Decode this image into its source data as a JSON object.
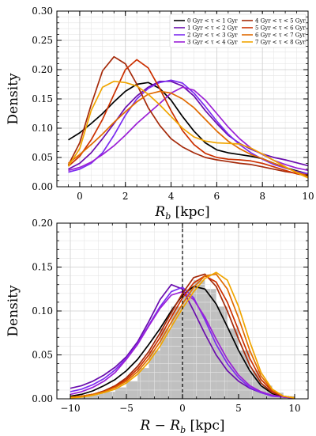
{
  "chart_data": [
    {
      "type": "line",
      "title": "",
      "xlabel": "R_b [kpc]",
      "xlabel_main": "R",
      "xlabel_sub": "b",
      "xlabel_unit": " [kpc]",
      "ylabel": "Density",
      "xlim": [
        -1,
        10
      ],
      "ylim": [
        0,
        0.3
      ],
      "xticks": [
        0,
        2,
        4,
        6,
        8,
        10
      ],
      "xtick_labels": [
        "0",
        "2",
        "4",
        "6",
        "8",
        "10"
      ],
      "yticks": [
        0,
        0.05,
        0.1,
        0.15,
        0.2,
        0.25,
        0.3
      ],
      "ytick_labels": [
        "0.00",
        "0.05",
        "0.10",
        "0.15",
        "0.20",
        "0.25",
        "0.30"
      ],
      "grid": true,
      "legend_position": "top-right",
      "x": [
        -0.5,
        0,
        0.5,
        1,
        1.5,
        2,
        2.5,
        3,
        3.5,
        4,
        4.5,
        5,
        5.5,
        6,
        6.5,
        7,
        7.5,
        8,
        8.5,
        9,
        9.5,
        10
      ],
      "series": [
        {
          "name": "0 Gyr < τ < 1 Gyr",
          "color": "#000000",
          "values": [
            0.08,
            0.092,
            0.108,
            0.125,
            0.145,
            0.163,
            0.175,
            0.178,
            0.168,
            0.148,
            0.12,
            0.095,
            0.075,
            0.063,
            0.058,
            0.055,
            0.052,
            0.048,
            0.04,
            0.033,
            0.027,
            0.022
          ]
        },
        {
          "name": "1 Gyr < τ < 2 Gyr",
          "color": "#6a0dad",
          "values": [
            0.03,
            0.04,
            0.058,
            0.082,
            0.108,
            0.135,
            0.155,
            0.17,
            0.18,
            0.18,
            0.172,
            0.155,
            0.13,
            0.108,
            0.088,
            0.074,
            0.064,
            0.056,
            0.05,
            0.046,
            0.041,
            0.036
          ]
        },
        {
          "name": "2 Gyr < τ < 3 Gyr",
          "color": "#7b2cf0",
          "values": [
            0.025,
            0.03,
            0.04,
            0.058,
            0.088,
            0.122,
            0.15,
            0.168,
            0.178,
            0.182,
            0.177,
            0.16,
            0.137,
            0.112,
            0.09,
            0.072,
            0.058,
            0.047,
            0.038,
            0.032,
            0.026,
            0.022
          ]
        },
        {
          "name": "3 Gyr < τ < 4 Gyr",
          "color": "#9b1fd6",
          "values": [
            0.028,
            0.033,
            0.042,
            0.055,
            0.07,
            0.088,
            0.108,
            0.125,
            0.142,
            0.16,
            0.17,
            0.165,
            0.148,
            0.125,
            0.102,
            0.082,
            0.066,
            0.055,
            0.045,
            0.038,
            0.032,
            0.028
          ]
        },
        {
          "name": "4 Gyr < τ < 5 Gyr",
          "color": "#a52a0a",
          "values": [
            0.037,
            0.075,
            0.14,
            0.198,
            0.222,
            0.21,
            0.175,
            0.135,
            0.105,
            0.082,
            0.068,
            0.058,
            0.05,
            0.046,
            0.043,
            0.04,
            0.038,
            0.034,
            0.03,
            0.026,
            0.023,
            0.02
          ]
        },
        {
          "name": "5 Gyr < τ < 6 Gyr",
          "color": "#cc3000",
          "values": [
            0.035,
            0.052,
            0.08,
            0.115,
            0.158,
            0.2,
            0.217,
            0.203,
            0.168,
            0.13,
            0.096,
            0.072,
            0.057,
            0.05,
            0.047,
            0.046,
            0.044,
            0.04,
            0.034,
            0.028,
            0.022,
            0.018
          ]
        },
        {
          "name": "6 Gyr < τ < 7 Gyr",
          "color": "#e06a00",
          "values": [
            0.04,
            0.055,
            0.072,
            0.09,
            0.11,
            0.128,
            0.145,
            0.158,
            0.163,
            0.16,
            0.15,
            0.135,
            0.115,
            0.095,
            0.078,
            0.065,
            0.055,
            0.048,
            0.04,
            0.033,
            0.025,
            0.018
          ]
        },
        {
          "name": "7 Gyr < τ < 8 Gyr",
          "color": "#f0a500",
          "values": [
            0.035,
            0.065,
            0.13,
            0.17,
            0.18,
            0.178,
            0.172,
            0.158,
            0.14,
            0.12,
            0.1,
            0.085,
            0.078,
            0.075,
            0.074,
            0.073,
            0.066,
            0.056,
            0.045,
            0.034,
            0.024,
            0.015
          ]
        }
      ]
    },
    {
      "type": "line",
      "title": "",
      "xlabel": "R - R_b [kpc]",
      "xlabel_main": "R − R",
      "xlabel_sub": "b",
      "xlabel_unit": " [kpc]",
      "ylabel": "Density",
      "xlim": [
        -11.2,
        11.2
      ],
      "ylim": [
        0,
        0.2
      ],
      "xticks": [
        -10,
        -5,
        0,
        5,
        10
      ],
      "xtick_labels": [
        "−10",
        "−5",
        "0",
        "5",
        "10"
      ],
      "yticks": [
        0,
        0.05,
        0.1,
        0.15,
        0.2
      ],
      "ytick_labels": [
        "0.00",
        "0.05",
        "0.10",
        "0.15",
        "0.20"
      ],
      "grid": true,
      "vertical_line_x": 0,
      "histogram": {
        "color": "#c0c0c0",
        "bin_width": 1,
        "bin_starts": [
          -10,
          -9,
          -8,
          -7,
          -6,
          -5,
          -4,
          -3,
          -2,
          -1,
          0,
          1,
          2,
          3,
          4,
          5,
          6,
          7,
          8,
          9
        ],
        "values": [
          0.003,
          0.004,
          0.006,
          0.008,
          0.013,
          0.02,
          0.035,
          0.055,
          0.08,
          0.105,
          0.125,
          0.135,
          0.125,
          0.105,
          0.08,
          0.055,
          0.032,
          0.015,
          0.007,
          0.003
        ]
      },
      "x": [
        -10,
        -9,
        -8,
        -7,
        -6,
        -5,
        -4,
        -3,
        -2,
        -1,
        0,
        1,
        2,
        3,
        4,
        5,
        6,
        7,
        8,
        9,
        10
      ],
      "series": [
        {
          "name": "0 Gyr < τ < 1 Gyr",
          "color": "#000000",
          "values": [
            0.003,
            0.005,
            0.009,
            0.015,
            0.022,
            0.032,
            0.045,
            0.062,
            0.08,
            0.1,
            0.118,
            0.128,
            0.125,
            0.108,
            0.082,
            0.055,
            0.032,
            0.015,
            0.006,
            0.002,
            0.001
          ]
        },
        {
          "name": "1 Gyr < τ < 2 Gyr",
          "color": "#6a0dad",
          "values": [
            0.012,
            0.015,
            0.02,
            0.027,
            0.036,
            0.048,
            0.065,
            0.088,
            0.113,
            0.13,
            0.125,
            0.1,
            0.074,
            0.05,
            0.032,
            0.02,
            0.012,
            0.007,
            0.004,
            0.002,
            0.001
          ]
        },
        {
          "name": "2 Gyr < τ < 3 Gyr",
          "color": "#7b2cf0",
          "values": [
            0.008,
            0.011,
            0.016,
            0.023,
            0.033,
            0.046,
            0.063,
            0.084,
            0.105,
            0.122,
            0.127,
            0.115,
            0.09,
            0.062,
            0.04,
            0.024,
            0.013,
            0.007,
            0.003,
            0.002,
            0.001
          ]
        },
        {
          "name": "3 Gyr < τ < 4 Gyr",
          "color": "#9b1fd6",
          "values": [
            0.005,
            0.008,
            0.013,
            0.02,
            0.03,
            0.045,
            0.062,
            0.083,
            0.103,
            0.118,
            0.122,
            0.113,
            0.093,
            0.068,
            0.045,
            0.027,
            0.015,
            0.008,
            0.004,
            0.002,
            0.001
          ]
        },
        {
          "name": "4 Gyr < τ < 5 Gyr",
          "color": "#a52a0a",
          "values": [
            0.002,
            0.003,
            0.005,
            0.009,
            0.015,
            0.024,
            0.037,
            0.054,
            0.075,
            0.098,
            0.12,
            0.138,
            0.142,
            0.128,
            0.1,
            0.068,
            0.038,
            0.018,
            0.007,
            0.003,
            0.001
          ]
        },
        {
          "name": "5 Gyr < τ < 6 Gyr",
          "color": "#cc3000",
          "values": [
            0.002,
            0.003,
            0.005,
            0.008,
            0.014,
            0.022,
            0.034,
            0.05,
            0.07,
            0.093,
            0.115,
            0.132,
            0.14,
            0.133,
            0.11,
            0.078,
            0.046,
            0.022,
            0.009,
            0.003,
            0.001
          ]
        },
        {
          "name": "6 Gyr < τ < 7 Gyr",
          "color": "#e06a00",
          "values": [
            0.002,
            0.003,
            0.005,
            0.008,
            0.013,
            0.02,
            0.031,
            0.046,
            0.065,
            0.087,
            0.108,
            0.127,
            0.14,
            0.142,
            0.125,
            0.092,
            0.055,
            0.026,
            0.01,
            0.003,
            0.001
          ]
        },
        {
          "name": "7 Gyr < τ < 8 Gyr",
          "color": "#f0a500",
          "values": [
            0.001,
            0.002,
            0.004,
            0.007,
            0.011,
            0.018,
            0.028,
            0.042,
            0.06,
            0.082,
            0.103,
            0.122,
            0.137,
            0.144,
            0.135,
            0.105,
            0.065,
            0.03,
            0.011,
            0.003,
            0.001
          ]
        }
      ]
    }
  ]
}
